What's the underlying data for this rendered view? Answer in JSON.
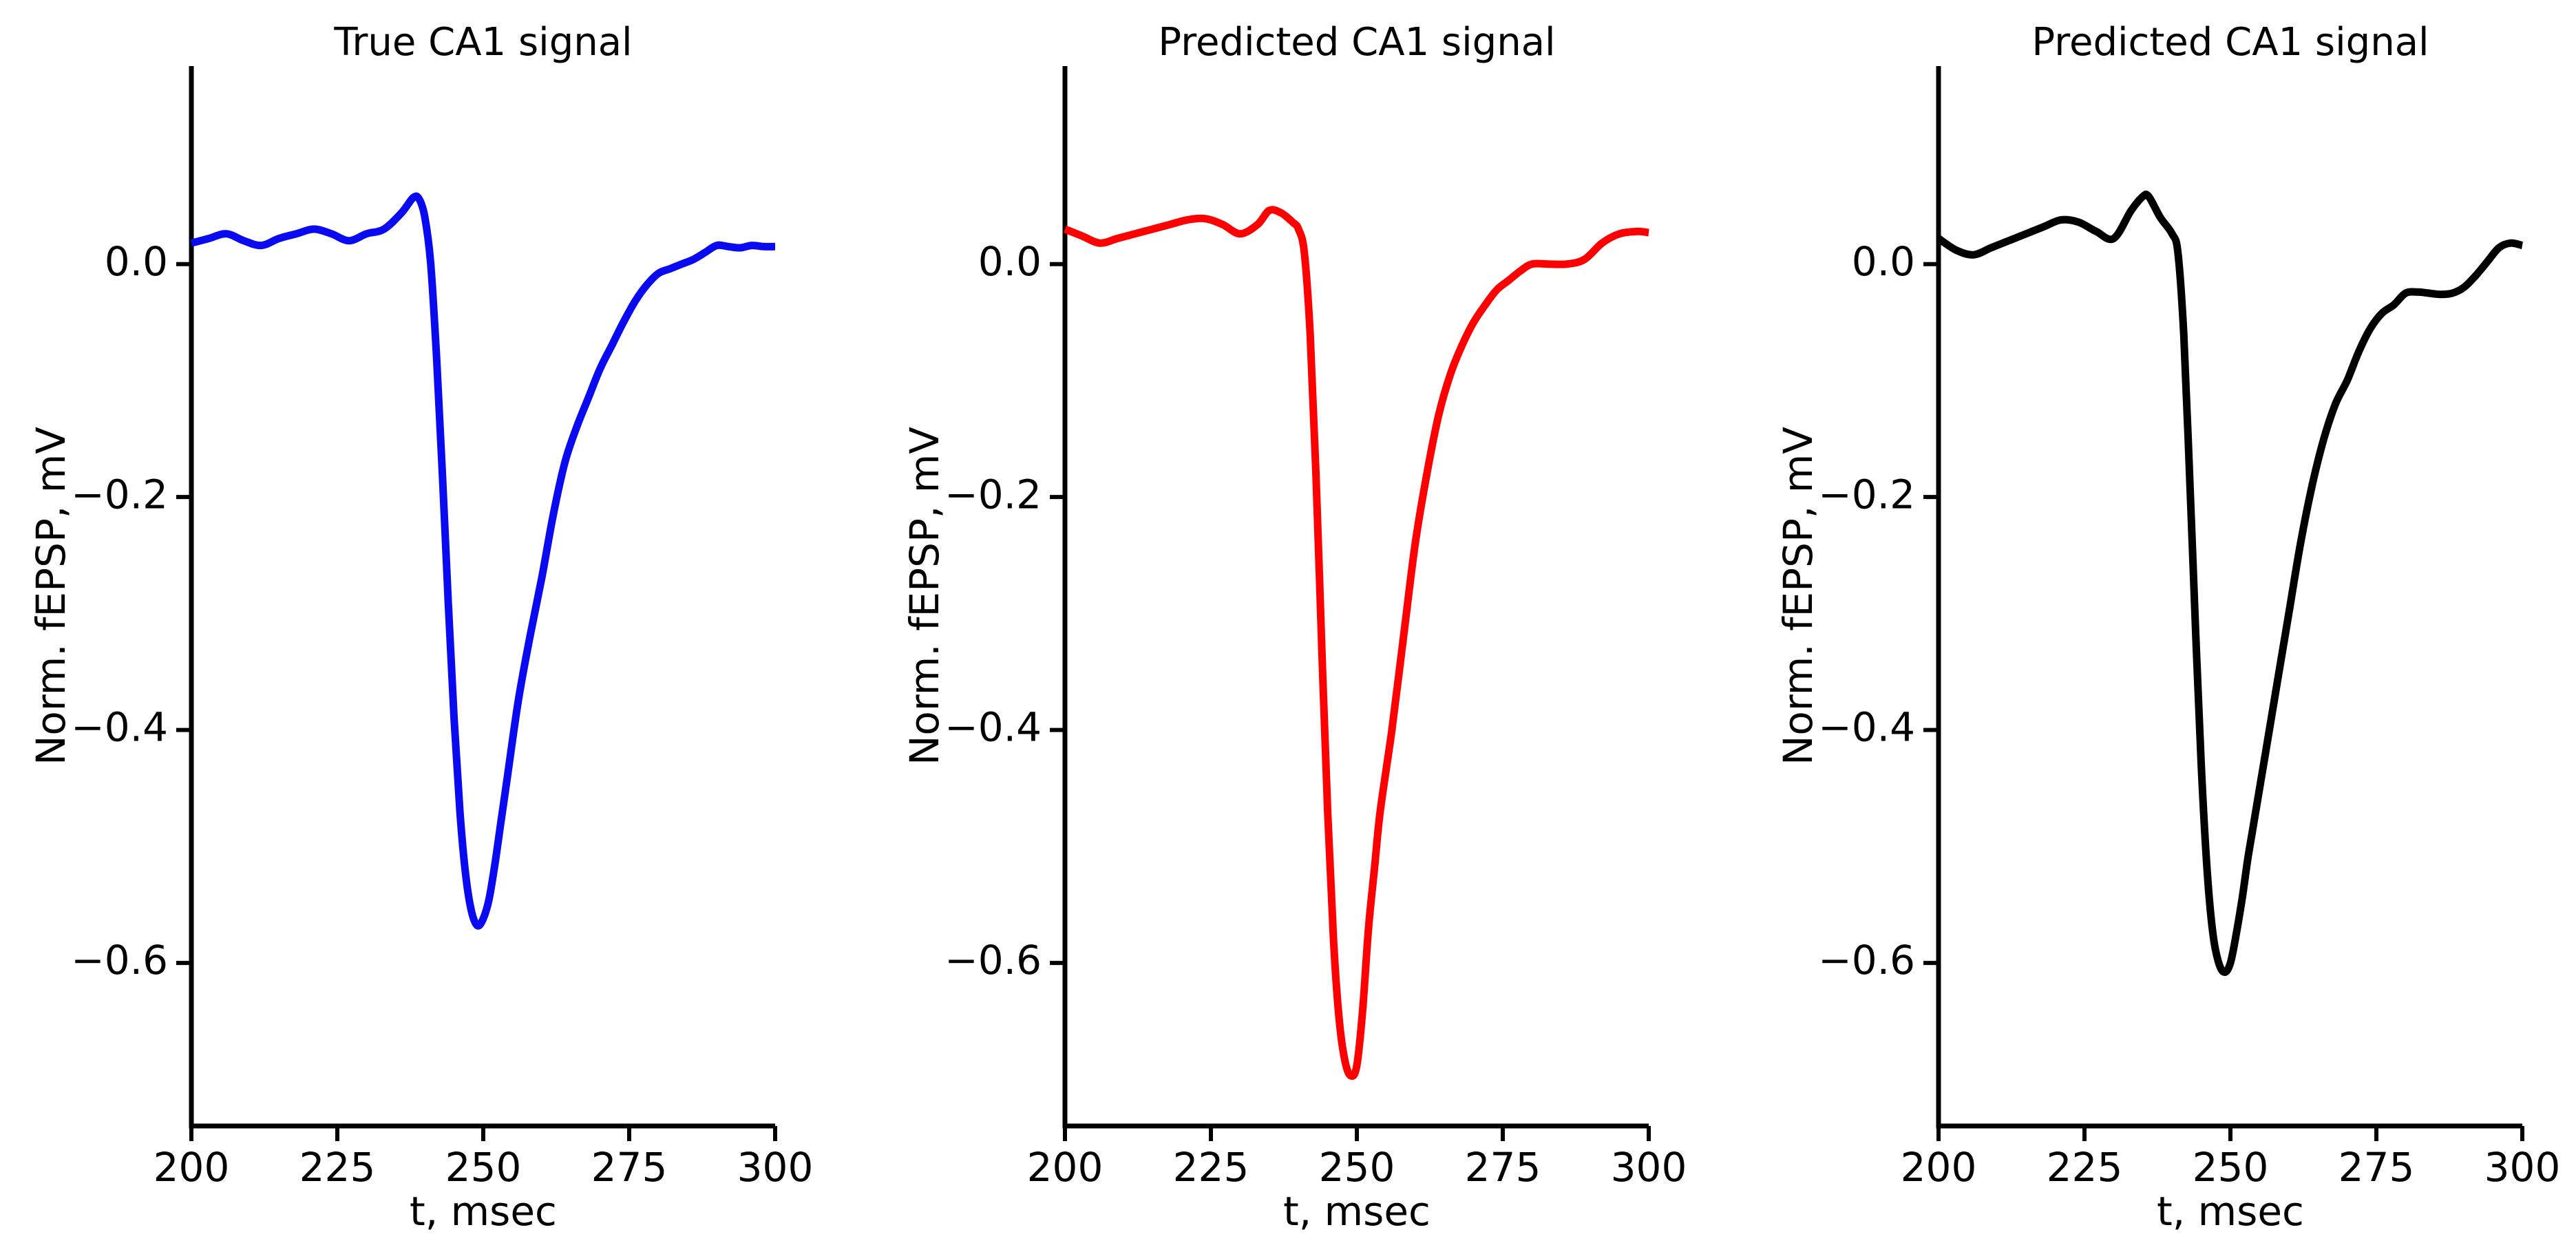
{
  "chart_data": [
    {
      "type": "line",
      "title": "True CA1 signal",
      "xlabel": "t, msec",
      "ylabel": "Norm. fEPSP, mV",
      "xlim": [
        200,
        300
      ],
      "ylim": [
        -0.74,
        0.17
      ],
      "xticks": [
        200,
        225,
        250,
        275,
        300
      ],
      "xtick_labels": [
        "200",
        "225",
        "250",
        "275",
        "300"
      ],
      "yticks": [
        0.0,
        -0.2,
        -0.4,
        -0.6
      ],
      "ytick_labels": [
        "0.0",
        "−0.2",
        "−0.4",
        "−0.6"
      ],
      "grid": false,
      "series": [
        {
          "color": "#0a0af0",
          "x": [
            200,
            203,
            206,
            209,
            212,
            215,
            218,
            221,
            224,
            227,
            230,
            233,
            236,
            238,
            239,
            240,
            241,
            242,
            243,
            244,
            245,
            246,
            247,
            248,
            249,
            250,
            251,
            252,
            253,
            254,
            256,
            258,
            260,
            262,
            264,
            266,
            268,
            270,
            272,
            274,
            276,
            278,
            280,
            282,
            284,
            286,
            288,
            290,
            292,
            294,
            296,
            298,
            300
          ],
          "y": [
            0.018,
            0.022,
            0.026,
            0.02,
            0.016,
            0.022,
            0.026,
            0.03,
            0.026,
            0.02,
            0.026,
            0.03,
            0.044,
            0.057,
            0.056,
            0.04,
            0.0,
            -0.08,
            -0.18,
            -0.29,
            -0.39,
            -0.47,
            -0.525,
            -0.556,
            -0.568,
            -0.562,
            -0.545,
            -0.515,
            -0.48,
            -0.445,
            -0.375,
            -0.32,
            -0.27,
            -0.215,
            -0.17,
            -0.14,
            -0.115,
            -0.09,
            -0.07,
            -0.05,
            -0.032,
            -0.018,
            -0.008,
            -0.004,
            0.0,
            0.004,
            0.01,
            0.016,
            0.015,
            0.014,
            0.016,
            0.015,
            0.015
          ]
        }
      ]
    },
    {
      "type": "line",
      "title": "Predicted CA1 signal",
      "xlabel": "t, msec",
      "ylabel": "Norm. fEPSP, mV",
      "xlim": [
        200,
        300
      ],
      "ylim": [
        -0.74,
        0.17
      ],
      "xticks": [
        200,
        225,
        250,
        275,
        300
      ],
      "xtick_labels": [
        "200",
        "225",
        "250",
        "275",
        "300"
      ],
      "yticks": [
        0.0,
        -0.2,
        -0.4,
        -0.6
      ],
      "ytick_labels": [
        "0.0",
        "−0.2",
        "−0.4",
        "−0.6"
      ],
      "grid": false,
      "series": [
        {
          "color": "#ff0000",
          "x": [
            200,
            203,
            206,
            209,
            212,
            215,
            218,
            221,
            224,
            227,
            230,
            233,
            235,
            237,
            239,
            240,
            241,
            242,
            243,
            244,
            245,
            246,
            247,
            248,
            249,
            250,
            251,
            252,
            253,
            254,
            256,
            258,
            260,
            262,
            264,
            266,
            268,
            270,
            272,
            274,
            276,
            278,
            280,
            283,
            286,
            289,
            292,
            295,
            298,
            300
          ],
          "y": [
            0.03,
            0.024,
            0.018,
            0.022,
            0.026,
            0.03,
            0.034,
            0.038,
            0.039,
            0.034,
            0.026,
            0.034,
            0.046,
            0.044,
            0.036,
            0.03,
            0.01,
            -0.06,
            -0.18,
            -0.33,
            -0.47,
            -0.58,
            -0.65,
            -0.685,
            -0.697,
            -0.688,
            -0.64,
            -0.57,
            -0.52,
            -0.47,
            -0.4,
            -0.32,
            -0.24,
            -0.18,
            -0.13,
            -0.095,
            -0.07,
            -0.05,
            -0.035,
            -0.022,
            -0.014,
            -0.006,
            0.0,
            0.0,
            0.0,
            0.004,
            0.018,
            0.026,
            0.028,
            0.027
          ]
        }
      ]
    },
    {
      "type": "line",
      "title": "Predicted CA1 signal",
      "xlabel": "t, msec",
      "ylabel": "Norm. fEPSP, mV",
      "xlim": [
        200,
        300
      ],
      "ylim": [
        -0.74,
        0.17
      ],
      "xticks": [
        200,
        225,
        250,
        275,
        300
      ],
      "xtick_labels": [
        "200",
        "225",
        "250",
        "275",
        "300"
      ],
      "yticks": [
        0.0,
        -0.2,
        -0.4,
        -0.6
      ],
      "ytick_labels": [
        "0.0",
        "−0.2",
        "−0.4",
        "−0.6"
      ],
      "grid": false,
      "series": [
        {
          "color": "#000000",
          "x": [
            200,
            203,
            206,
            209,
            212,
            215,
            218,
            221,
            224,
            227,
            230,
            233,
            235,
            236,
            238,
            240,
            241,
            242,
            243,
            244,
            245,
            246,
            247,
            248,
            249,
            250,
            251,
            252,
            253,
            254,
            256,
            258,
            260,
            262,
            264,
            266,
            268,
            270,
            272,
            274,
            276,
            278,
            280,
            282,
            284,
            286,
            288,
            290,
            292,
            294,
            296,
            298,
            300
          ],
          "y": [
            0.022,
            0.012,
            0.008,
            0.014,
            0.02,
            0.026,
            0.032,
            0.038,
            0.036,
            0.028,
            0.022,
            0.046,
            0.058,
            0.058,
            0.04,
            0.026,
            0.01,
            -0.06,
            -0.18,
            -0.31,
            -0.43,
            -0.52,
            -0.575,
            -0.6,
            -0.608,
            -0.6,
            -0.575,
            -0.545,
            -0.51,
            -0.48,
            -0.42,
            -0.36,
            -0.3,
            -0.24,
            -0.19,
            -0.15,
            -0.12,
            -0.1,
            -0.075,
            -0.055,
            -0.042,
            -0.035,
            -0.025,
            -0.024,
            -0.025,
            -0.026,
            -0.025,
            -0.02,
            -0.01,
            0.002,
            0.014,
            0.018,
            0.016
          ]
        }
      ]
    }
  ]
}
